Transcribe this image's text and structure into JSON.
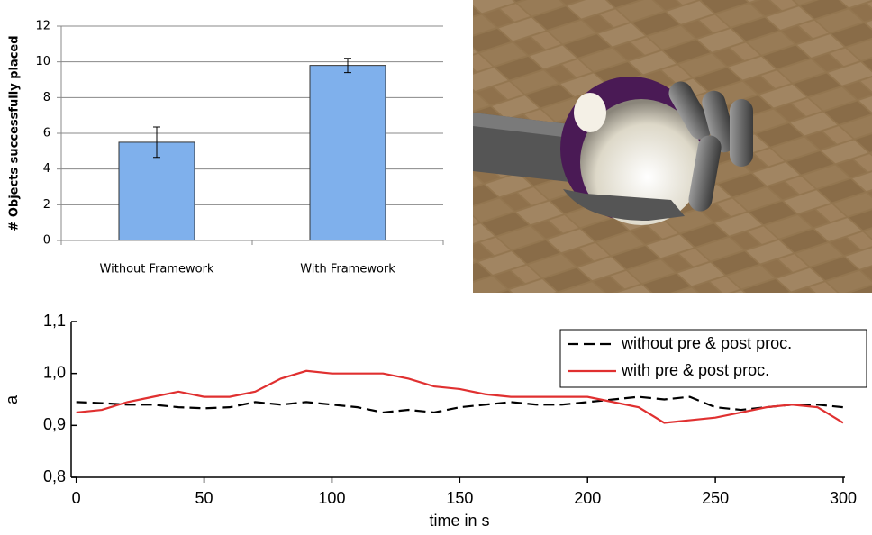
{
  "chart_data": [
    {
      "type": "bar",
      "ylabel": "# Objects successfully placed",
      "categories": [
        "Without Framework",
        "With Framework"
      ],
      "values": [
        5.5,
        9.8
      ],
      "errors": [
        0.85,
        0.4
      ],
      "color": "#7fb0ec",
      "ylim": [
        0,
        12
      ],
      "yticks": [
        0,
        2,
        4,
        6,
        8,
        10,
        12
      ],
      "grid": true
    },
    {
      "type": "line",
      "xlabel": "time in s",
      "ylabel": "a",
      "x": [
        0,
        10,
        20,
        30,
        40,
        50,
        60,
        70,
        80,
        90,
        100,
        110,
        120,
        130,
        140,
        150,
        160,
        170,
        180,
        190,
        200,
        210,
        220,
        230,
        240,
        250,
        260,
        270,
        280,
        290,
        300
      ],
      "series": [
        {
          "name": "without pre & post proc.",
          "color": "#000000",
          "dashed": true,
          "values": [
            0.945,
            0.943,
            0.94,
            0.94,
            0.935,
            0.933,
            0.935,
            0.945,
            0.94,
            0.945,
            0.94,
            0.935,
            0.925,
            0.93,
            0.925,
            0.935,
            0.94,
            0.945,
            0.94,
            0.94,
            0.945,
            0.95,
            0.955,
            0.95,
            0.955,
            0.935,
            0.93,
            0.935,
            0.94,
            0.94,
            0.935
          ]
        },
        {
          "name": "with pre & post proc.",
          "color": "#e03030",
          "dashed": false,
          "values": [
            0.925,
            0.93,
            0.945,
            0.955,
            0.965,
            0.955,
            0.955,
            0.965,
            0.99,
            1.005,
            1.0,
            1.0,
            1.0,
            0.99,
            0.975,
            0.97,
            0.96,
            0.955,
            0.955,
            0.955,
            0.955,
            0.945,
            0.935,
            0.905,
            0.91,
            0.915,
            0.925,
            0.935,
            0.94,
            0.935,
            0.905
          ]
        }
      ],
      "xlim": [
        -2,
        300
      ],
      "xticks": [
        0,
        50,
        100,
        150,
        200,
        250,
        300
      ],
      "ylim": [
        0.8,
        1.1
      ],
      "yticks": [
        {
          "value": 0.8,
          "label": "0,8"
        },
        {
          "value": 0.9,
          "label": "0,9"
        },
        {
          "value": 1.0,
          "label": "1,0"
        },
        {
          "value": 1.1,
          "label": "1,1"
        }
      ],
      "legend": "upper right"
    }
  ]
}
